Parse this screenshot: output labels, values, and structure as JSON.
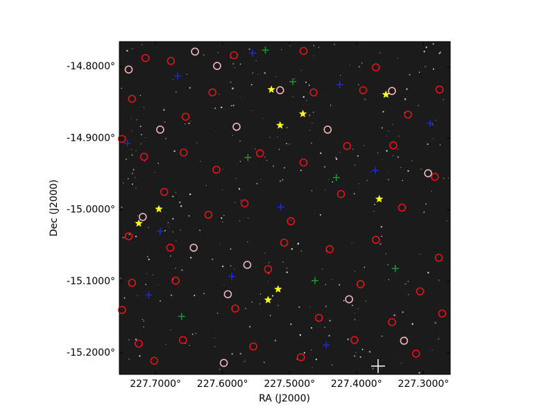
{
  "chart_data": {
    "type": "scatter",
    "x_label": "RA (J2000)",
    "y_label": "Dec (J2000)",
    "xlim": [
      227.754,
      227.26
    ],
    "ylim": [
      -15.23,
      -14.765
    ],
    "xticks": [
      {
        "value": 227.7,
        "label": "227.7000°"
      },
      {
        "value": 227.6,
        "label": "227.6000°"
      },
      {
        "value": 227.5,
        "label": "227.5000°"
      },
      {
        "value": 227.4,
        "label": "227.4000°"
      },
      {
        "value": 227.3,
        "label": "227.3000°"
      }
    ],
    "yticks": [
      {
        "value": -14.8,
        "label": "-14.8000°"
      },
      {
        "value": -14.9,
        "label": "-14.9000°"
      },
      {
        "value": -15.0,
        "label": "-15.0000°"
      },
      {
        "value": -15.1,
        "label": "-15.1000°"
      },
      {
        "value": -15.2,
        "label": "-15.2000°"
      }
    ],
    "series": [
      {
        "marker": "circle",
        "color": "#e8111a",
        "x": [
          227.715,
          227.677,
          227.583,
          227.479,
          227.371,
          227.276,
          227.735,
          227.655,
          227.615,
          227.464,
          227.39,
          227.323,
          227.75,
          227.717,
          227.658,
          227.609,
          227.544,
          227.479,
          227.414,
          227.345,
          227.283,
          227.687,
          227.621,
          227.567,
          227.498,
          227.423,
          227.332,
          227.74,
          227.678,
          227.508,
          227.44,
          227.371,
          227.277,
          227.735,
          227.67,
          227.532,
          227.394,
          227.305,
          227.75,
          227.581,
          227.456,
          227.347,
          227.272,
          227.725,
          227.659,
          227.554,
          227.483,
          227.403,
          227.311,
          227.702
        ],
        "y": [
          -14.788,
          -14.792,
          -14.784,
          -14.778,
          -14.801,
          -14.832,
          -14.845,
          -14.87,
          -14.836,
          -14.836,
          -14.833,
          -14.867,
          -14.901,
          -14.926,
          -14.92,
          -14.944,
          -14.921,
          -14.934,
          -14.911,
          -14.91,
          -14.954,
          -14.975,
          -15.007,
          -14.991,
          -15.016,
          -14.978,
          -14.997,
          -15.037,
          -15.053,
          -15.046,
          -15.055,
          -15.042,
          -15.067,
          -15.102,
          -15.099,
          -15.083,
          -15.104,
          -15.114,
          -15.14,
          -15.138,
          -15.151,
          -15.157,
          -15.145,
          -15.187,
          -15.182,
          -15.191,
          -15.206,
          -15.182,
          -15.201,
          -15.211
        ]
      },
      {
        "marker": "circle",
        "color": "#f4b6bd",
        "x": [
          227.74,
          227.641,
          227.608,
          227.514,
          227.347,
          227.693,
          227.579,
          227.443,
          227.293,
          227.719,
          227.643,
          227.563,
          227.592,
          227.411,
          227.329,
          227.598
        ],
        "y": [
          -14.804,
          -14.779,
          -14.799,
          -14.833,
          -14.834,
          -14.888,
          -14.884,
          -14.888,
          -14.949,
          -15.01,
          -15.053,
          -15.077,
          -15.118,
          -15.125,
          -15.183,
          -15.214
        ]
      },
      {
        "marker": "plus",
        "color": "#1f2bd6",
        "x": [
          227.742,
          227.667,
          227.555,
          227.425,
          227.29,
          227.513,
          227.693,
          227.71,
          227.445,
          227.372,
          227.586
        ],
        "y": [
          -14.907,
          -14.813,
          -14.781,
          -14.825,
          -14.879,
          -14.996,
          -15.03,
          -15.119,
          -15.189,
          -14.945,
          -15.093
        ]
      },
      {
        "marker": "plus",
        "color": "#1e9a2a",
        "x": [
          227.536,
          227.495,
          227.562,
          227.43,
          227.661,
          227.342,
          227.462
        ],
        "y": [
          -14.777,
          -14.821,
          -14.927,
          -14.955,
          -15.149,
          -15.082,
          -15.099
        ]
      },
      {
        "marker": "star",
        "color": "#ffff1a",
        "x": [
          227.527,
          227.48,
          227.514,
          227.356,
          227.695,
          227.725,
          227.366,
          227.517,
          227.532
        ],
        "y": [
          -14.832,
          -14.866,
          -14.882,
          -14.839,
          -14.999,
          -15.019,
          -14.985,
          -15.111,
          -15.126
        ]
      }
    ]
  }
}
